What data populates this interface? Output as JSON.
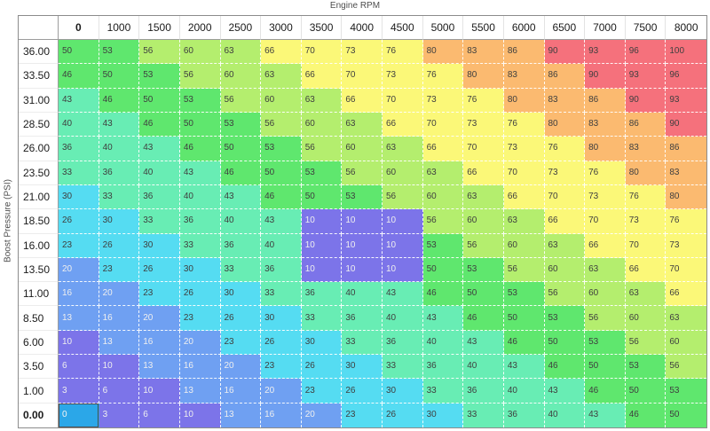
{
  "title": "Engine RPM",
  "y_axis_label": "Boost Pressure (PSI)",
  "chart_data": {
    "type": "heatmap",
    "x_axis": {
      "label": "Engine RPM",
      "ticks": [
        "0",
        "1000",
        "1500",
        "2000",
        "2500",
        "3000",
        "3500",
        "4000",
        "4500",
        "5000",
        "5500",
        "6000",
        "6500",
        "7000",
        "7500",
        "8000"
      ]
    },
    "y_axis": {
      "label": "Boost Pressure (PSI)",
      "ticks": [
        "36.00",
        "33.50",
        "31.00",
        "28.50",
        "26.00",
        "23.50",
        "21.00",
        "18.50",
        "16.00",
        "13.50",
        "11.00",
        "8.50",
        "6.00",
        "3.50",
        "1.00",
        "0.00"
      ]
    },
    "values": [
      [
        50,
        53,
        56,
        60,
        63,
        66,
        70,
        73,
        76,
        80,
        83,
        86,
        90,
        93,
        96,
        100
      ],
      [
        46,
        50,
        53,
        56,
        60,
        63,
        66,
        70,
        73,
        76,
        80,
        83,
        86,
        90,
        93,
        96
      ],
      [
        43,
        46,
        50,
        53,
        56,
        60,
        63,
        66,
        70,
        73,
        76,
        80,
        83,
        86,
        90,
        93
      ],
      [
        40,
        43,
        46,
        50,
        53,
        56,
        60,
        63,
        66,
        70,
        73,
        76,
        80,
        83,
        86,
        90
      ],
      [
        36,
        40,
        43,
        46,
        50,
        53,
        56,
        60,
        63,
        66,
        70,
        73,
        76,
        80,
        83,
        86
      ],
      [
        33,
        36,
        40,
        43,
        46,
        50,
        53,
        56,
        60,
        63,
        66,
        70,
        73,
        76,
        80,
        83
      ],
      [
        30,
        33,
        36,
        40,
        43,
        46,
        50,
        53,
        56,
        60,
        63,
        66,
        70,
        73,
        76,
        80
      ],
      [
        26,
        30,
        33,
        36,
        40,
        43,
        10,
        10,
        10,
        56,
        60,
        63,
        66,
        70,
        73,
        76
      ],
      [
        23,
        26,
        30,
        33,
        36,
        40,
        10,
        10,
        10,
        53,
        56,
        60,
        63,
        66,
        70,
        73
      ],
      [
        20,
        23,
        26,
        30,
        33,
        36,
        10,
        10,
        10,
        50,
        53,
        56,
        60,
        63,
        66,
        70
      ],
      [
        16,
        20,
        23,
        26,
        30,
        33,
        36,
        40,
        43,
        46,
        50,
        53,
        56,
        60,
        63,
        66
      ],
      [
        13,
        16,
        20,
        23,
        26,
        30,
        33,
        36,
        40,
        43,
        46,
        50,
        53,
        56,
        60,
        63
      ],
      [
        10,
        13,
        16,
        20,
        23,
        26,
        30,
        33,
        36,
        40,
        43,
        46,
        50,
        53,
        56,
        60
      ],
      [
        6,
        10,
        13,
        16,
        20,
        23,
        26,
        30,
        33,
        36,
        40,
        43,
        46,
        50,
        53,
        56
      ],
      [
        3,
        6,
        10,
        13,
        16,
        20,
        23,
        26,
        30,
        33,
        36,
        40,
        43,
        46,
        50,
        53
      ],
      [
        0,
        3,
        6,
        10,
        13,
        16,
        20,
        23,
        26,
        30,
        33,
        36,
        40,
        43,
        46,
        50
      ]
    ],
    "selected_cell": {
      "row_label": "0.00",
      "col_label": "0",
      "value": 0
    },
    "value_range": [
      0,
      100
    ],
    "color_scale": [
      {
        "min": 0,
        "max": 0,
        "bg": "#2BA7E8",
        "fg": "#F5F5F5"
      },
      {
        "min": 1,
        "max": 12,
        "bg": "#7C74E9",
        "fg": "#EFEFEF"
      },
      {
        "min": 13,
        "max": 22,
        "bg": "#6FA0F2",
        "fg": "#EFEFEF"
      },
      {
        "min": 23,
        "max": 32,
        "bg": "#55DCF2",
        "fg": "#3F3F3F"
      },
      {
        "min": 33,
        "max": 45,
        "bg": "#68EDB4",
        "fg": "#3F3F3F"
      },
      {
        "min": 46,
        "max": 55,
        "bg": "#5FE76E",
        "fg": "#3F3F3F"
      },
      {
        "min": 56,
        "max": 65,
        "bg": "#B4EE6E",
        "fg": "#3F3F3F"
      },
      {
        "min": 66,
        "max": 79,
        "bg": "#FBF878",
        "fg": "#3F3F3F"
      },
      {
        "min": 80,
        "max": 89,
        "bg": "#FBBA70",
        "fg": "#3F3F3F"
      },
      {
        "min": 90,
        "max": 100,
        "bg": "#F5717C",
        "fg": "#3F3F3F"
      }
    ]
  }
}
